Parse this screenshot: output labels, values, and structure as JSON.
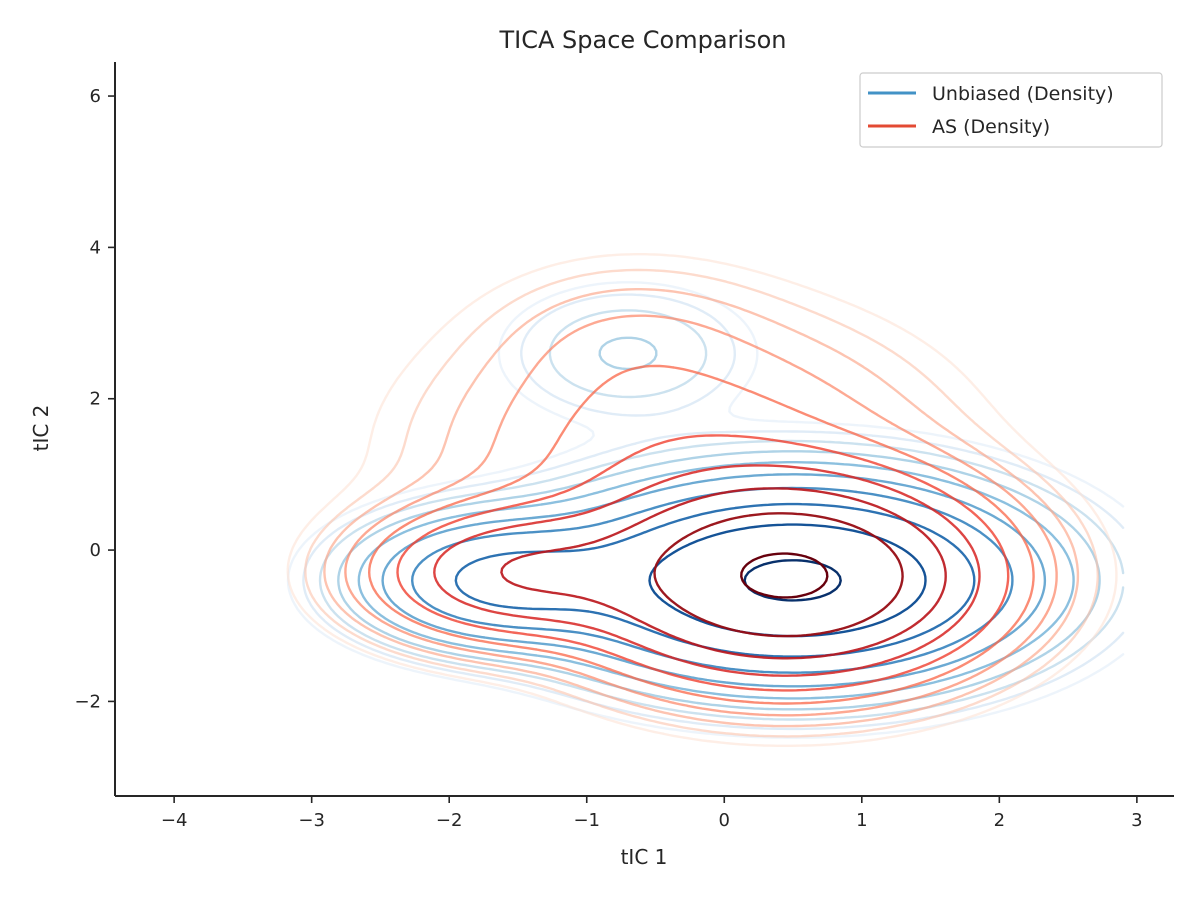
{
  "chart_data": {
    "type": "contour",
    "title": "TICA Space Comparison",
    "xlabel": "tIC 1",
    "ylabel": "tIC 2",
    "xlim": [
      -4.43,
      3.27
    ],
    "ylim": [
      -3.25,
      6.45
    ],
    "xticks": [
      -4,
      -3,
      -2,
      -1,
      0,
      1,
      2,
      3
    ],
    "yticks": [
      -2,
      0,
      2,
      4,
      6
    ],
    "xtick_labels": [
      "−4",
      "−3",
      "−2",
      "−1",
      "0",
      "1",
      "2",
      "3"
    ],
    "ytick_labels": [
      "−2",
      "0",
      "2",
      "4",
      "6"
    ],
    "grid": false,
    "legend_position": "top-right",
    "series": [
      {
        "name": "Unbiased (Density)",
        "color": "#4292c6",
        "levels": 10,
        "components": [
          {
            "mx": 0.5,
            "my": -0.4,
            "sx": 0.85,
            "sy": 0.65,
            "w": 1.0
          },
          {
            "mx": -1.6,
            "my": -0.4,
            "sx": 0.55,
            "sy": 0.45,
            "w": 0.35
          },
          {
            "mx": -0.7,
            "my": 2.6,
            "sx": 0.5,
            "sy": 0.5,
            "w": 0.035
          }
        ]
      },
      {
        "name": "AS (Density)",
        "color": "#e34a33",
        "levels": 10,
        "components": [
          {
            "mx": 0.45,
            "my": -0.35,
            "sx": 0.75,
            "sy": 0.7,
            "w": 1.0
          },
          {
            "mx": -1.5,
            "my": -0.3,
            "sx": 0.6,
            "sy": 0.5,
            "w": 0.28
          },
          {
            "mx": -0.3,
            "my": 1.3,
            "sx": 1.0,
            "sy": 1.0,
            "w": 0.08
          },
          {
            "mx": -0.7,
            "my": 2.8,
            "sx": 0.6,
            "sy": 0.6,
            "w": 0.02
          }
        ]
      }
    ]
  }
}
